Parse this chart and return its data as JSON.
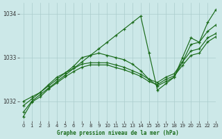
{
  "xlabel": "Graphe pression niveau de la mer (hPa)",
  "background_color": "#cce8e8",
  "grid_color": "#aacccc",
  "line_color": "#1a6b1a",
  "xlim": [
    -0.5,
    23
  ],
  "ylim": [
    1031.55,
    1034.25
  ],
  "yticks": [
    1032,
    1033,
    1034
  ],
  "xticks": [
    0,
    1,
    2,
    3,
    4,
    5,
    6,
    7,
    8,
    9,
    10,
    11,
    12,
    13,
    14,
    15,
    16,
    17,
    18,
    19,
    20,
    21,
    22,
    23
  ],
  "series": [
    [
      1031.75,
      1032.0,
      1032.15,
      1032.3,
      1032.45,
      1032.6,
      1032.75,
      1032.9,
      1033.05,
      1033.2,
      1033.35,
      1033.5,
      1033.65,
      1033.8,
      1033.95,
      1033.1,
      1032.25,
      1032.4,
      1032.55,
      1033.0,
      1033.45,
      1033.35,
      1033.8,
      1034.1
    ],
    [
      1031.9,
      1032.05,
      1032.2,
      1032.35,
      1032.5,
      1032.65,
      1032.8,
      1033.0,
      1033.05,
      1033.1,
      1033.05,
      1033.0,
      1032.95,
      1032.85,
      1032.7,
      1032.5,
      1032.35,
      1032.45,
      1032.55,
      1032.9,
      1033.3,
      1033.35,
      1033.6,
      1033.75
    ],
    [
      1032.0,
      1032.1,
      1032.2,
      1032.38,
      1032.55,
      1032.65,
      1032.75,
      1032.85,
      1032.88,
      1032.88,
      1032.88,
      1032.83,
      1032.78,
      1032.7,
      1032.62,
      1032.5,
      1032.43,
      1032.55,
      1032.63,
      1032.9,
      1033.15,
      1033.2,
      1033.45,
      1033.55
    ],
    [
      1031.65,
      1031.98,
      1032.1,
      1032.28,
      1032.42,
      1032.56,
      1032.68,
      1032.78,
      1032.83,
      1032.83,
      1032.83,
      1032.77,
      1032.72,
      1032.65,
      1032.57,
      1032.45,
      1032.38,
      1032.5,
      1032.58,
      1032.82,
      1033.05,
      1033.1,
      1033.36,
      1033.48
    ]
  ]
}
